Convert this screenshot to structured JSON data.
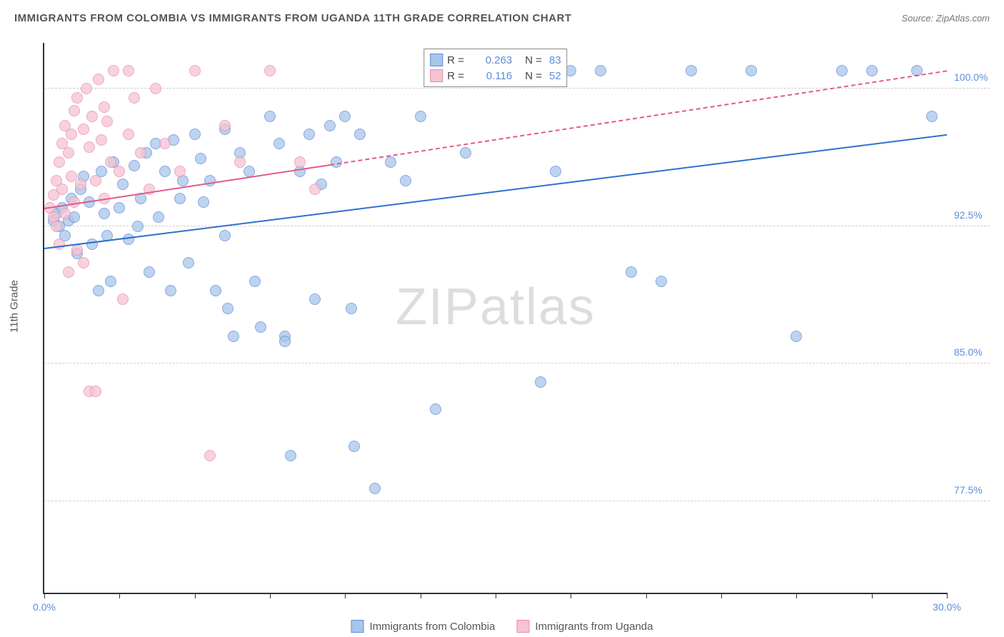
{
  "header": {
    "title": "IMMIGRANTS FROM COLOMBIA VS IMMIGRANTS FROM UGANDA 11TH GRADE CORRELATION CHART",
    "source": "Source: ZipAtlas.com"
  },
  "chart": {
    "type": "scatter",
    "y_axis_title": "11th Grade",
    "watermark": "ZIPatlas",
    "background_color": "#ffffff",
    "grid_color": "#cccccc",
    "axis_color": "#333333",
    "xlim": [
      0,
      30
    ],
    "ylim": [
      72.5,
      102.5
    ],
    "y_ticks": [
      {
        "value": 100.0,
        "label": "100.0%"
      },
      {
        "value": 92.5,
        "label": "92.5%"
      },
      {
        "value": 85.0,
        "label": "85.0%"
      },
      {
        "value": 77.5,
        "label": "77.5%"
      }
    ],
    "x_ticks": [
      0,
      2.5,
      5,
      7.5,
      10,
      12.5,
      15,
      17.5,
      20,
      22.5,
      25,
      27.5,
      30
    ],
    "x_tick_labels": {
      "0": "0.0%",
      "30": "30.0%"
    },
    "series": [
      {
        "name": "Immigrants from Colombia",
        "fill_color": "#a8c5ea",
        "stroke_color": "#5b8dd6",
        "trend_color": "#2f6fd0",
        "marker_radius": 8,
        "r_value": "0.263",
        "n_value": "83",
        "trend": {
          "x0": 0,
          "y0": 91.3,
          "x1": 30,
          "y1": 97.5,
          "dashed_from_x": 30
        },
        "points": [
          [
            0.3,
            92.8
          ],
          [
            0.4,
            93.2
          ],
          [
            0.5,
            92.5
          ],
          [
            0.6,
            93.5
          ],
          [
            0.7,
            92.0
          ],
          [
            0.8,
            92.8
          ],
          [
            0.9,
            94.0
          ],
          [
            1.0,
            93.0
          ],
          [
            1.1,
            91.0
          ],
          [
            1.2,
            94.5
          ],
          [
            1.3,
            95.2
          ],
          [
            1.5,
            93.8
          ],
          [
            1.6,
            91.5
          ],
          [
            1.8,
            89.0
          ],
          [
            1.9,
            95.5
          ],
          [
            2.0,
            93.2
          ],
          [
            2.1,
            92.0
          ],
          [
            2.2,
            89.5
          ],
          [
            2.3,
            96.0
          ],
          [
            2.5,
            93.5
          ],
          [
            2.6,
            94.8
          ],
          [
            2.8,
            91.8
          ],
          [
            3.0,
            95.8
          ],
          [
            3.1,
            92.5
          ],
          [
            3.2,
            94.0
          ],
          [
            3.4,
            96.5
          ],
          [
            3.5,
            90.0
          ],
          [
            3.7,
            97.0
          ],
          [
            3.8,
            93.0
          ],
          [
            4.0,
            95.5
          ],
          [
            4.2,
            89.0
          ],
          [
            4.3,
            97.2
          ],
          [
            4.5,
            94.0
          ],
          [
            4.6,
            95.0
          ],
          [
            4.8,
            90.5
          ],
          [
            5.0,
            97.5
          ],
          [
            5.2,
            96.2
          ],
          [
            5.3,
            93.8
          ],
          [
            5.5,
            95.0
          ],
          [
            5.7,
            89.0
          ],
          [
            6.0,
            97.8
          ],
          [
            6.1,
            88.0
          ],
          [
            6.3,
            86.5
          ],
          [
            6.5,
            96.5
          ],
          [
            6.8,
            95.5
          ],
          [
            7.0,
            89.5
          ],
          [
            7.2,
            87.0
          ],
          [
            7.5,
            98.5
          ],
          [
            7.8,
            97.0
          ],
          [
            8.0,
            86.5
          ],
          [
            8.0,
            86.2
          ],
          [
            8.2,
            80.0
          ],
          [
            8.5,
            95.5
          ],
          [
            8.8,
            97.5
          ],
          [
            9.0,
            88.5
          ],
          [
            9.2,
            94.8
          ],
          [
            9.5,
            98.0
          ],
          [
            9.7,
            96.0
          ],
          [
            10.0,
            98.5
          ],
          [
            10.2,
            88.0
          ],
          [
            10.3,
            80.5
          ],
          [
            10.5,
            97.5
          ],
          [
            11.0,
            78.2
          ],
          [
            11.5,
            96.0
          ],
          [
            12.0,
            95.0
          ],
          [
            12.5,
            98.5
          ],
          [
            13.0,
            82.5
          ],
          [
            14.0,
            96.5
          ],
          [
            15.0,
            101.0
          ],
          [
            16.5,
            84.0
          ],
          [
            17.0,
            95.5
          ],
          [
            17.5,
            101.0
          ],
          [
            18.5,
            101.0
          ],
          [
            19.5,
            90.0
          ],
          [
            20.5,
            89.5
          ],
          [
            21.5,
            101.0
          ],
          [
            23.5,
            101.0
          ],
          [
            25.0,
            86.5
          ],
          [
            26.5,
            101.0
          ],
          [
            27.5,
            101.0
          ],
          [
            29.0,
            101.0
          ],
          [
            29.5,
            98.5
          ],
          [
            6.0,
            92.0
          ]
        ]
      },
      {
        "name": "Immigrants from Uganda",
        "fill_color": "#f5c3d3",
        "stroke_color": "#e88ba8",
        "trend_color": "#e35a8a",
        "marker_radius": 8,
        "r_value": "0.116",
        "n_value": "52",
        "trend": {
          "x0": 0,
          "y0": 93.5,
          "x1": 30,
          "y1": 101.0,
          "dashed_from_x": 9.5
        },
        "points": [
          [
            0.2,
            93.5
          ],
          [
            0.3,
            94.2
          ],
          [
            0.3,
            93.0
          ],
          [
            0.4,
            95.0
          ],
          [
            0.4,
            92.5
          ],
          [
            0.5,
            96.0
          ],
          [
            0.5,
            91.5
          ],
          [
            0.6,
            94.5
          ],
          [
            0.6,
            97.0
          ],
          [
            0.7,
            93.2
          ],
          [
            0.7,
            98.0
          ],
          [
            0.8,
            96.5
          ],
          [
            0.8,
            90.0
          ],
          [
            0.9,
            97.5
          ],
          [
            0.9,
            95.2
          ],
          [
            1.0,
            93.8
          ],
          [
            1.0,
            98.8
          ],
          [
            1.1,
            91.2
          ],
          [
            1.1,
            99.5
          ],
          [
            1.2,
            94.8
          ],
          [
            1.3,
            97.8
          ],
          [
            1.3,
            90.5
          ],
          [
            1.4,
            100.0
          ],
          [
            1.5,
            96.8
          ],
          [
            1.5,
            83.5
          ],
          [
            1.6,
            98.5
          ],
          [
            1.7,
            83.5
          ],
          [
            1.7,
            95.0
          ],
          [
            1.8,
            100.5
          ],
          [
            1.9,
            97.2
          ],
          [
            2.0,
            99.0
          ],
          [
            2.0,
            94.0
          ],
          [
            2.1,
            98.2
          ],
          [
            2.2,
            96.0
          ],
          [
            2.3,
            101.0
          ],
          [
            2.5,
            95.5
          ],
          [
            2.6,
            88.5
          ],
          [
            2.8,
            97.5
          ],
          [
            2.8,
            101.0
          ],
          [
            3.0,
            99.5
          ],
          [
            3.2,
            96.5
          ],
          [
            3.5,
            94.5
          ],
          [
            3.7,
            100.0
          ],
          [
            4.0,
            97.0
          ],
          [
            4.5,
            95.5
          ],
          [
            5.0,
            101.0
          ],
          [
            5.5,
            80.0
          ],
          [
            6.0,
            98.0
          ],
          [
            6.5,
            96.0
          ],
          [
            7.5,
            101.0
          ],
          [
            8.5,
            96.0
          ],
          [
            9.0,
            94.5
          ]
        ]
      }
    ],
    "legend_top": {
      "r_label": "R =",
      "n_label": "N ="
    },
    "legend_bottom": [
      {
        "series_index": 0
      },
      {
        "series_index": 1
      }
    ]
  }
}
